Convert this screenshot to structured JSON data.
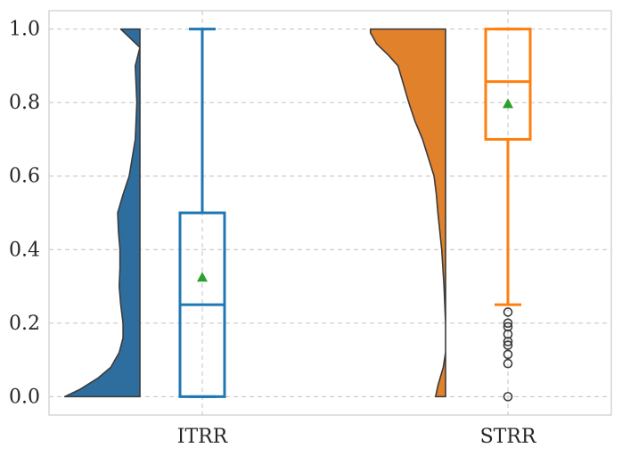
{
  "chart_data": {
    "type": "raincloud",
    "title": "",
    "xlabel": "",
    "ylabel": "",
    "ylim": [
      -0.05,
      1.05
    ],
    "yticks": [
      "0.0",
      "0.2",
      "0.4",
      "0.6",
      "0.8",
      "1.0"
    ],
    "grid": true,
    "categories": [
      "ITRR",
      "STRR"
    ],
    "series": [
      {
        "category": "ITRR",
        "color": "#2e6e9e",
        "box_color": "#1f77b4",
        "box": {
          "whisker_low": 0.0,
          "q1": 0.0,
          "median": 0.25,
          "q3": 0.5,
          "whisker_high": 1.0,
          "mean": 0.325
        },
        "outliers": [],
        "density_profile": [
          [
            0.0,
            0.98
          ],
          [
            0.02,
            0.78
          ],
          [
            0.05,
            0.55
          ],
          [
            0.08,
            0.38
          ],
          [
            0.12,
            0.27
          ],
          [
            0.16,
            0.22
          ],
          [
            0.2,
            0.22
          ],
          [
            0.25,
            0.25
          ],
          [
            0.3,
            0.27
          ],
          [
            0.35,
            0.26
          ],
          [
            0.4,
            0.26
          ],
          [
            0.45,
            0.28
          ],
          [
            0.5,
            0.29
          ],
          [
            0.55,
            0.22
          ],
          [
            0.6,
            0.14
          ],
          [
            0.7,
            0.06
          ],
          [
            0.8,
            0.04
          ],
          [
            0.85,
            0.05
          ],
          [
            0.9,
            0.06
          ],
          [
            0.95,
            0.0
          ],
          [
            1.0,
            0.25
          ]
        ]
      },
      {
        "category": "STRR",
        "color": "#e1812c",
        "box_color": "#ff7f0e",
        "box": {
          "whisker_low": 0.25,
          "q1": 0.7,
          "median": 0.857,
          "q3": 1.0,
          "whisker_high": 1.0,
          "mean": 0.797
        },
        "outliers": [
          0.0,
          0.09,
          0.115,
          0.14,
          0.15,
          0.17,
          0.19,
          0.2,
          0.23
        ],
        "density_profile": [
          [
            0.0,
            0.13
          ],
          [
            0.03,
            0.1
          ],
          [
            0.08,
            0.03
          ],
          [
            0.12,
            0.0
          ],
          [
            0.2,
            0.0
          ],
          [
            0.3,
            0.02
          ],
          [
            0.4,
            0.05
          ],
          [
            0.5,
            0.1
          ],
          [
            0.55,
            0.12
          ],
          [
            0.6,
            0.15
          ],
          [
            0.7,
            0.3
          ],
          [
            0.75,
            0.4
          ],
          [
            0.8,
            0.48
          ],
          [
            0.85,
            0.55
          ],
          [
            0.9,
            0.62
          ],
          [
            0.93,
            0.75
          ],
          [
            0.96,
            0.9
          ],
          [
            0.99,
            0.98
          ],
          [
            1.0,
            0.98
          ]
        ]
      }
    ]
  }
}
